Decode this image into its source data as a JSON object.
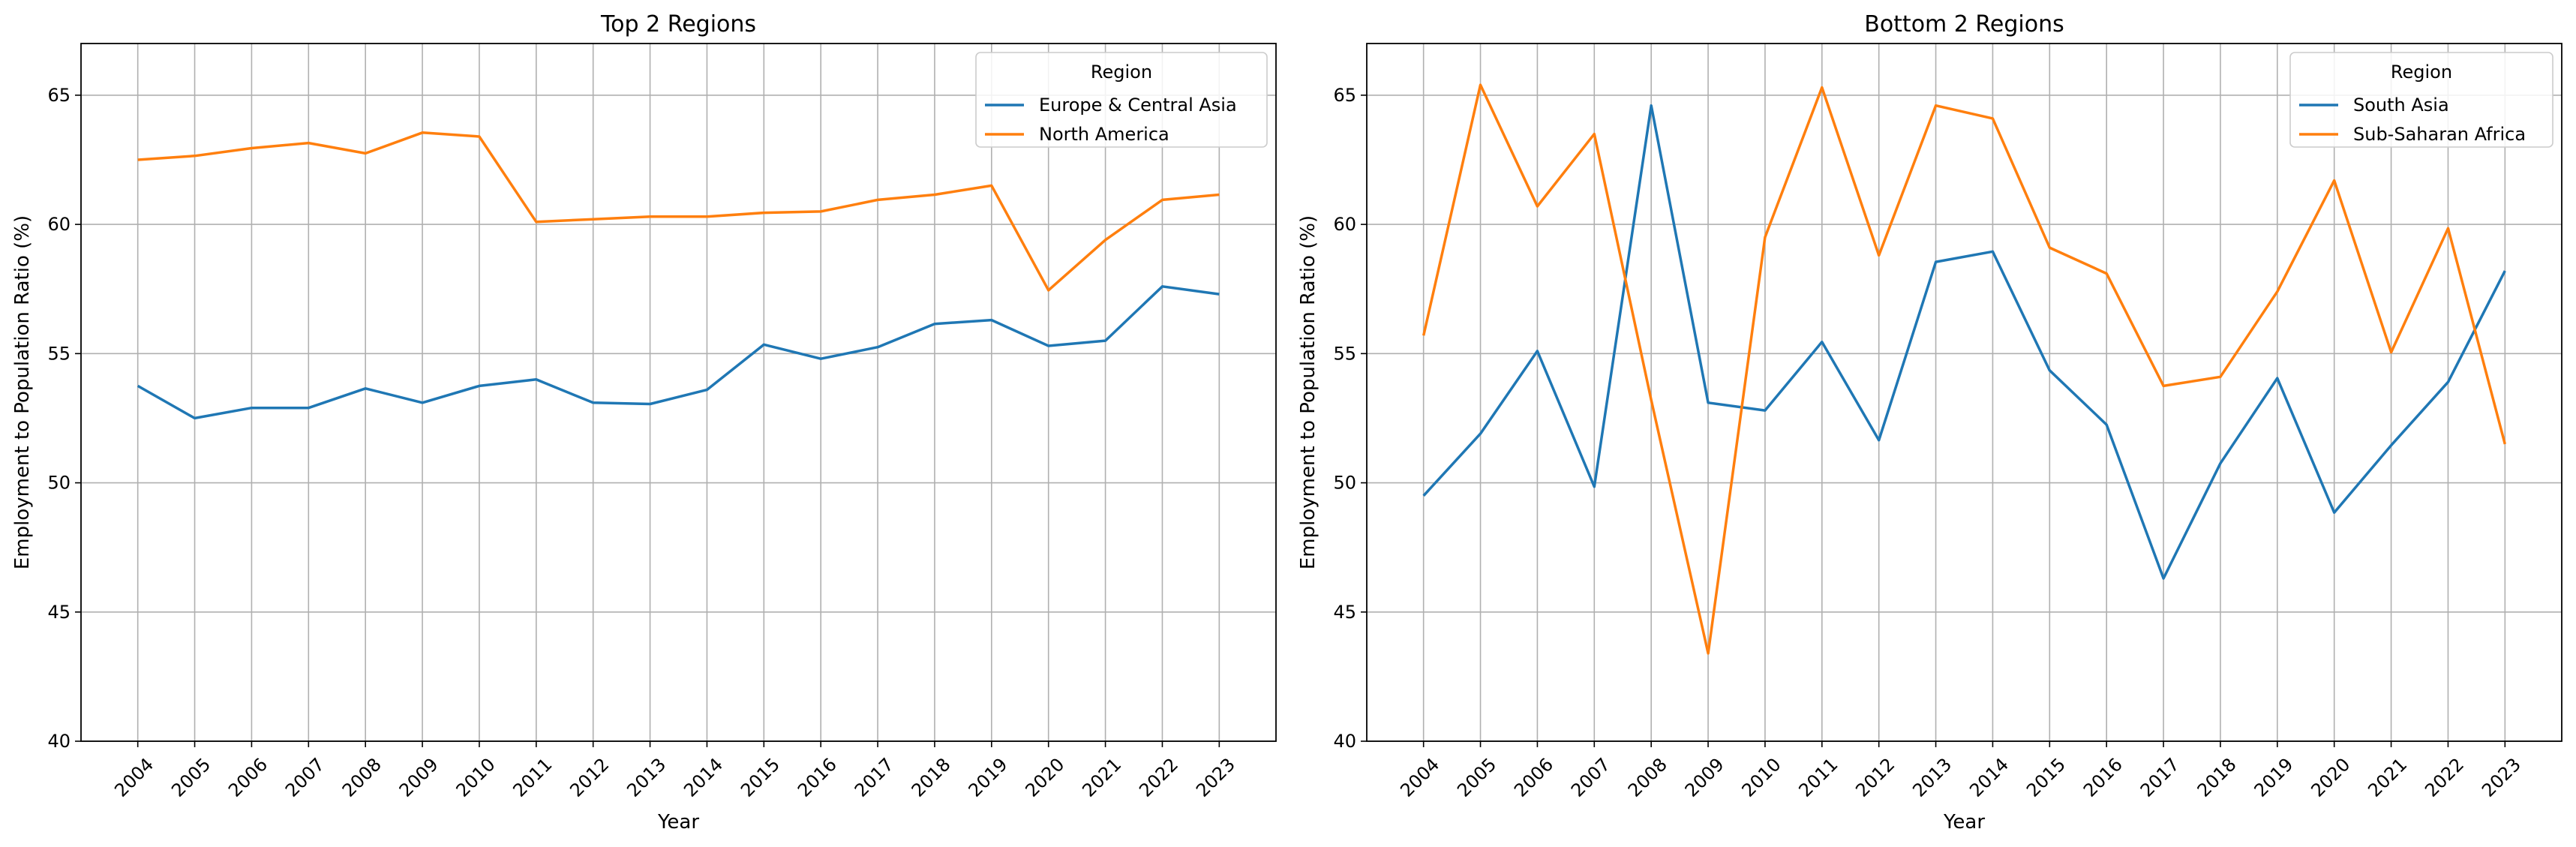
{
  "chart_data": [
    {
      "type": "line",
      "title": "Top 2 Regions",
      "xlabel": "Year",
      "ylabel": "Employment to Population Ratio (%)",
      "ylim": [
        40,
        67
      ],
      "yticks": [
        40,
        45,
        50,
        55,
        60,
        65
      ],
      "grid": true,
      "legend": {
        "title": "Region",
        "placement": "top-right"
      },
      "x": [
        "2004",
        "2005",
        "2006",
        "2007",
        "2008",
        "2009",
        "2010",
        "2011",
        "2012",
        "2013",
        "2014",
        "2015",
        "2016",
        "2017",
        "2018",
        "2019",
        "2020",
        "2021",
        "2022",
        "2023"
      ],
      "series": [
        {
          "name": "Europe & Central Asia",
          "color": "#1f77b4",
          "values": [
            53.75,
            52.5,
            52.9,
            52.9,
            53.65,
            53.1,
            53.75,
            54.0,
            53.1,
            53.05,
            53.6,
            55.35,
            54.8,
            55.25,
            56.15,
            56.3,
            55.3,
            55.5,
            57.6,
            57.3
          ]
        },
        {
          "name": "North America",
          "color": "#ff7f0e",
          "values": [
            62.5,
            62.65,
            62.95,
            63.15,
            62.75,
            63.55,
            63.4,
            60.1,
            60.2,
            60.3,
            60.3,
            60.45,
            60.5,
            60.95,
            61.15,
            61.5,
            57.45,
            59.4,
            60.95,
            61.15
          ]
        }
      ]
    },
    {
      "type": "line",
      "title": "Bottom 2 Regions",
      "xlabel": "Year",
      "ylabel": "Employment to Population Ratio (%)",
      "ylim": [
        40,
        67
      ],
      "yticks": [
        40,
        45,
        50,
        55,
        60,
        65
      ],
      "grid": true,
      "legend": {
        "title": "Region",
        "placement": "top-right"
      },
      "x": [
        "2004",
        "2005",
        "2006",
        "2007",
        "2008",
        "2009",
        "2010",
        "2011",
        "2012",
        "2013",
        "2014",
        "2015",
        "2016",
        "2017",
        "2018",
        "2019",
        "2020",
        "2021",
        "2022",
        "2023"
      ],
      "series": [
        {
          "name": "South Asia",
          "color": "#1f77b4",
          "values": [
            49.5,
            51.9,
            55.1,
            49.85,
            64.6,
            53.1,
            52.8,
            55.45,
            51.65,
            58.55,
            58.95,
            54.35,
            52.25,
            46.3,
            50.75,
            54.05,
            48.85,
            51.45,
            53.9,
            58.2
          ]
        },
        {
          "name": "Sub-Saharan Africa",
          "color": "#ff7f0e",
          "values": [
            55.7,
            65.4,
            60.7,
            63.5,
            53.2,
            43.4,
            59.5,
            65.3,
            58.8,
            64.6,
            64.1,
            59.1,
            58.1,
            53.75,
            54.1,
            57.4,
            61.7,
            55.05,
            59.85,
            51.5
          ]
        }
      ]
    }
  ]
}
